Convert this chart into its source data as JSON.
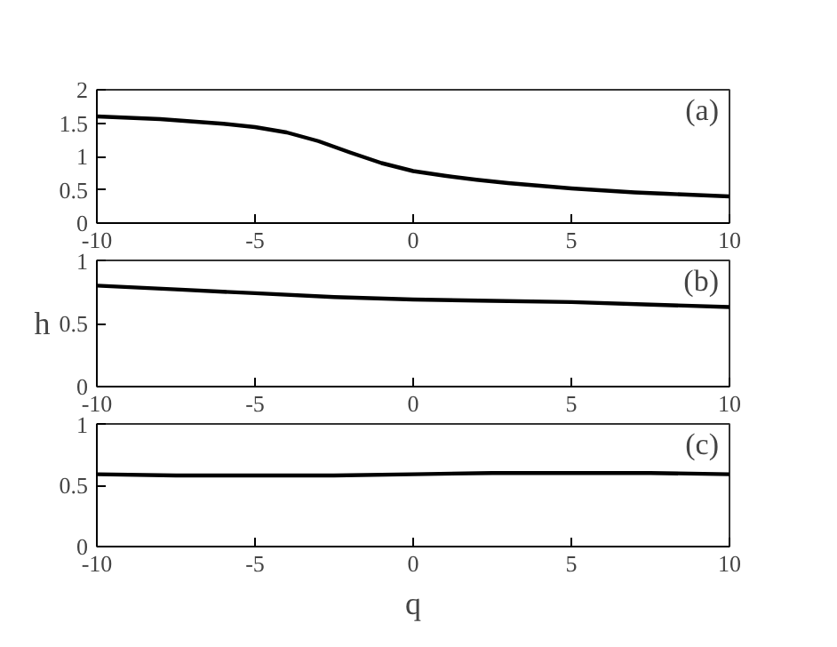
{
  "chart_data": [
    {
      "type": "line",
      "x": [
        -10,
        -8,
        -6,
        -5,
        -4,
        -3,
        -2,
        -1,
        0,
        1,
        2,
        3,
        4,
        5,
        6,
        7,
        8,
        9,
        10
      ],
      "series": [
        {
          "color": "#000000",
          "values": [
            1.6,
            1.56,
            1.49,
            1.44,
            1.36,
            1.23,
            1.06,
            0.9,
            0.78,
            0.71,
            0.65,
            0.6,
            0.56,
            0.52,
            0.49,
            0.46,
            0.44,
            0.42,
            0.4
          ]
        }
      ],
      "xlim": [
        -10,
        10
      ],
      "xticks": [
        -10,
        -5,
        0,
        5,
        10
      ],
      "ylim": [
        0,
        2
      ],
      "yticks": [
        0,
        0.5,
        1,
        1.5,
        2
      ],
      "annotations": [
        "(a)"
      ]
    },
    {
      "type": "line",
      "x": [
        -10,
        -7.5,
        -5,
        -2.5,
        0,
        2.5,
        5,
        7.5,
        10
      ],
      "series": [
        {
          "color": "#000000",
          "values": [
            0.8,
            0.77,
            0.74,
            0.71,
            0.69,
            0.68,
            0.67,
            0.65,
            0.63
          ]
        }
      ],
      "xlim": [
        -10,
        10
      ],
      "xticks": [
        -10,
        -5,
        0,
        5,
        10
      ],
      "ylim": [
        0,
        1
      ],
      "yticks": [
        0,
        0.5,
        1
      ],
      "ylabel": "h",
      "annotations": [
        "(b)"
      ]
    },
    {
      "type": "line",
      "x": [
        -10,
        -7.5,
        -5,
        -2.5,
        0,
        2.5,
        5,
        7.5,
        10
      ],
      "series": [
        {
          "color": "#000000",
          "values": [
            0.59,
            0.58,
            0.58,
            0.58,
            0.59,
            0.6,
            0.6,
            0.6,
            0.59
          ]
        }
      ],
      "xlim": [
        -10,
        10
      ],
      "xticks": [
        -10,
        -5,
        0,
        5,
        10
      ],
      "ylim": [
        0,
        1
      ],
      "yticks": [
        0,
        0.5,
        1
      ],
      "xlabel": "q",
      "annotations": [
        "(c)"
      ]
    }
  ]
}
